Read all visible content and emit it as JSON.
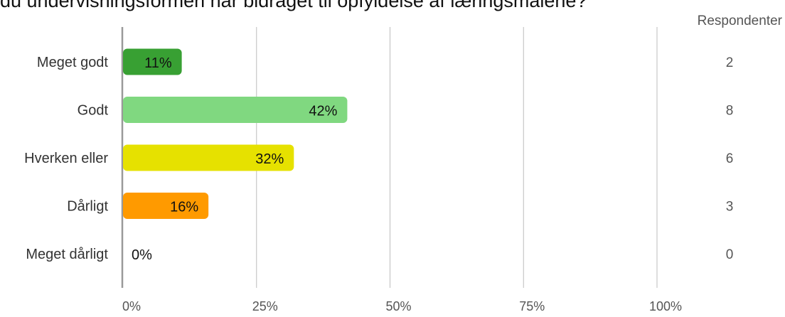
{
  "chart_data": {
    "type": "bar",
    "orientation": "horizontal",
    "title": "du undervisningsformen har bidraget til opfyldelse af læringsmålene?",
    "categories": [
      "Meget godt",
      "Godt",
      "Hverken eller",
      "Dårligt",
      "Meget dårligt"
    ],
    "values": [
      11,
      42,
      32,
      16,
      0
    ],
    "value_labels": [
      "11%",
      "42%",
      "32%",
      "16%",
      "0%"
    ],
    "bar_colors": [
      "#38a033",
      "#80d880",
      "#e6e100",
      "#ff9a00",
      "#cccccc"
    ],
    "xlim": [
      0,
      100
    ],
    "x_ticks": [
      0,
      25,
      50,
      75,
      100
    ],
    "x_tick_labels": [
      "0%",
      "25%",
      "50%",
      "75%",
      "100%"
    ],
    "grid": true,
    "respondents_header": "Respondenter",
    "respondents": [
      "2",
      "8",
      "6",
      "3",
      "0"
    ]
  }
}
